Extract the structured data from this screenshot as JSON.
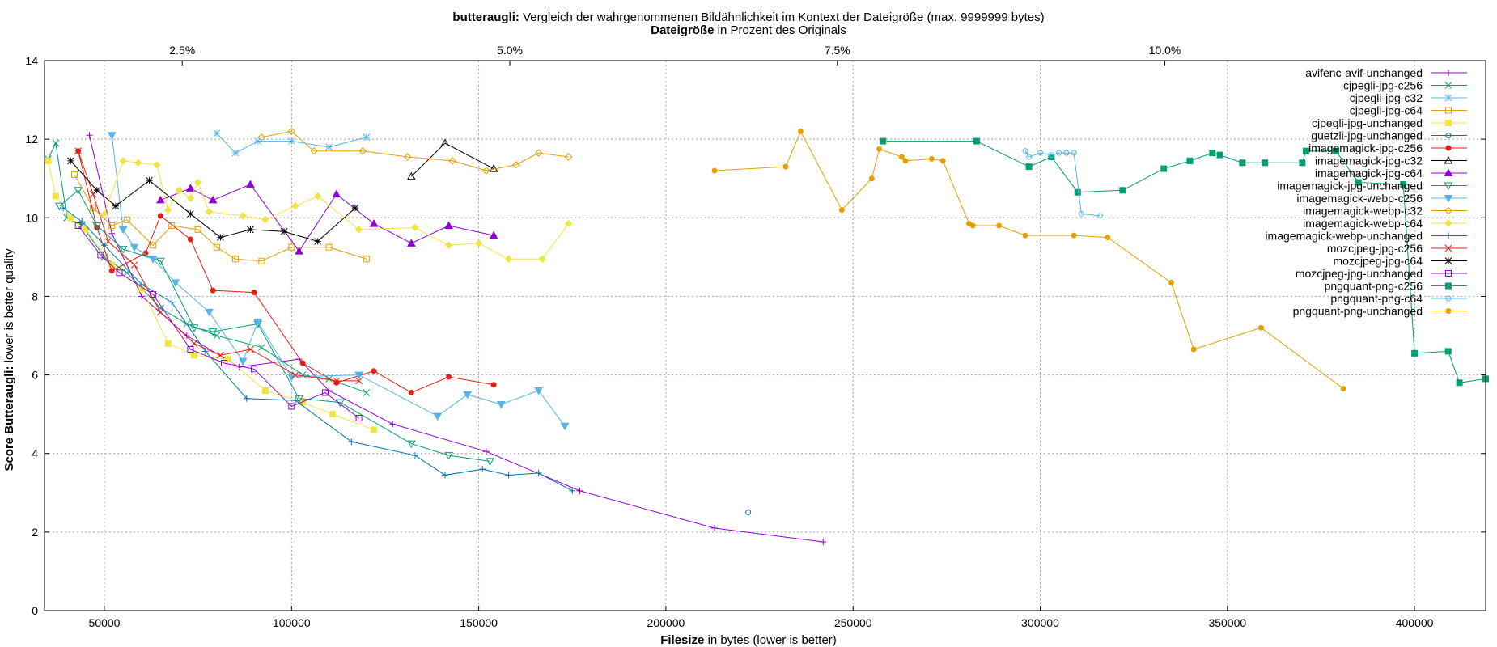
{
  "chart_data": {
    "type": "line",
    "title_bold": "butteraugli:",
    "title_rest": " Vergleich der wahrgenommenen Bildähnlichkeit im Kontext der Dateigröße (max. 9999999 bytes)",
    "x2label_bold": "Dateigröße",
    "x2label_rest": " in Prozent des Originals",
    "xlabel_bold": "Filesize",
    "xlabel_rest": " in bytes (lower is better)",
    "ylabel_bold": "Score Butteraugli:",
    "ylabel_rest": " lower is better quality",
    "xlim": [
      34000,
      419000
    ],
    "ylim": [
      0,
      14
    ],
    "x_ticks": [
      50000,
      100000,
      150000,
      200000,
      250000,
      300000,
      350000,
      400000
    ],
    "x_tick_labels": [
      "50000",
      "100000",
      "150000",
      "200000",
      "250000",
      "300000",
      "350000",
      "400000"
    ],
    "y_ticks": [
      0,
      2,
      4,
      6,
      8,
      10,
      12,
      14
    ],
    "y_tick_labels": [
      "0",
      "2",
      "4",
      "6",
      "8",
      "10",
      "12",
      "14"
    ],
    "x2_ticks": [
      70800,
      158300,
      245800,
      333300
    ],
    "x2_tick_labels": [
      "2.5%",
      "5.0%",
      "7.5%",
      "10.0%"
    ],
    "grid": true,
    "legend_position": "top-right",
    "series": [
      {
        "name": "avifenc-avif-unchanged",
        "color": "#9400d3",
        "marker": "plus",
        "points": [
          [
            46000,
            12.1
          ],
          [
            52000,
            9.6
          ],
          [
            60000,
            8.0
          ],
          [
            72000,
            7.0
          ],
          [
            86000,
            6.2
          ],
          [
            102000,
            6.4
          ],
          [
            110000,
            5.6
          ],
          [
            127000,
            4.75
          ],
          [
            152000,
            4.05
          ],
          [
            177000,
            3.05
          ],
          [
            213000,
            2.1
          ],
          [
            242000,
            1.75
          ]
        ]
      },
      {
        "name": "cjpegli-jpg-c256",
        "color": "#009e73",
        "marker": "x",
        "points": [
          [
            35000,
            11.5
          ],
          [
            37000,
            11.9
          ],
          [
            40000,
            10.0
          ],
          [
            44000,
            9.8
          ],
          [
            50000,
            9.0
          ],
          [
            56000,
            8.6
          ],
          [
            65000,
            7.7
          ],
          [
            72000,
            7.3
          ],
          [
            80000,
            7.0
          ],
          [
            92000,
            6.7
          ],
          [
            103000,
            6.0
          ],
          [
            110000,
            5.9
          ],
          [
            120000,
            5.55
          ]
        ]
      },
      {
        "name": "cjpegli-jpg-c32",
        "color": "#56b4e9",
        "marker": "star",
        "points": [
          [
            80000,
            12.15
          ],
          [
            85000,
            11.65
          ],
          [
            91000,
            11.95
          ],
          [
            100000,
            11.95
          ],
          [
            110000,
            11.8
          ],
          [
            120000,
            12.05
          ]
        ]
      },
      {
        "name": "cjpegli-jpg-c64",
        "color": "#e69f00",
        "marker": "square",
        "points": [
          [
            42000,
            11.1
          ],
          [
            47000,
            10.25
          ],
          [
            52000,
            9.8
          ],
          [
            56000,
            9.95
          ],
          [
            63000,
            9.3
          ],
          [
            68000,
            9.8
          ],
          [
            75000,
            9.7
          ],
          [
            80000,
            9.25
          ],
          [
            85000,
            8.95
          ],
          [
            92000,
            8.9
          ],
          [
            100000,
            9.25
          ],
          [
            110000,
            9.25
          ],
          [
            120000,
            8.95
          ]
        ]
      },
      {
        "name": "cjpegli-jpg-unchanged",
        "color": "#f0e442",
        "marker": "filled-square",
        "points": [
          [
            35000,
            11.45
          ],
          [
            37000,
            10.55
          ],
          [
            41000,
            10.0
          ],
          [
            45000,
            9.7
          ],
          [
            52000,
            8.8
          ],
          [
            60000,
            8.2
          ],
          [
            67000,
            6.8
          ],
          [
            74000,
            6.5
          ],
          [
            83000,
            6.4
          ],
          [
            93000,
            5.6
          ],
          [
            103000,
            5.3
          ],
          [
            111000,
            5.0
          ],
          [
            122000,
            4.6
          ]
        ]
      },
      {
        "name": "guetzli-jpg-unchanged",
        "color": "#0072b2",
        "marker": "circle",
        "points": [
          [
            222000,
            2.5
          ]
        ]
      },
      {
        "name": "imagemagick-jpg-c256",
        "color": "#e51e10",
        "marker": "filled-circle",
        "points": [
          [
            43000,
            11.7
          ],
          [
            48000,
            9.75
          ],
          [
            52000,
            8.65
          ],
          [
            61000,
            9.1
          ],
          [
            65000,
            10.05
          ],
          [
            73000,
            9.45
          ],
          [
            79000,
            8.15
          ],
          [
            90000,
            8.1
          ],
          [
            103000,
            6.3
          ],
          [
            112000,
            5.8
          ],
          [
            122000,
            6.1
          ],
          [
            132000,
            5.55
          ],
          [
            142000,
            5.95
          ],
          [
            154000,
            5.75
          ]
        ]
      },
      {
        "name": "imagemagick-jpg-c32",
        "color": "#000000",
        "marker": "triangle",
        "points": [
          [
            132000,
            11.05
          ],
          [
            141000,
            11.9
          ],
          [
            154000,
            11.25
          ]
        ]
      },
      {
        "name": "imagemagick-jpg-c64",
        "color": "#9400d3",
        "marker": "filled-triangle",
        "points": [
          [
            65000,
            10.45
          ],
          [
            73000,
            10.75
          ],
          [
            79000,
            10.45
          ],
          [
            89000,
            10.85
          ],
          [
            102000,
            9.15
          ],
          [
            112000,
            10.6
          ],
          [
            122000,
            9.85
          ],
          [
            132000,
            9.35
          ],
          [
            142000,
            9.8
          ],
          [
            154000,
            9.55
          ]
        ]
      },
      {
        "name": "imagemagick-jpg-unchanged",
        "color": "#009e73",
        "marker": "down-triangle",
        "points": [
          [
            38000,
            10.3
          ],
          [
            43000,
            10.7
          ],
          [
            48000,
            9.8
          ],
          [
            55000,
            9.2
          ],
          [
            65000,
            8.9
          ],
          [
            74000,
            7.2
          ],
          [
            79000,
            7.1
          ],
          [
            91000,
            7.3
          ],
          [
            102000,
            5.4
          ],
          [
            113000,
            5.3
          ],
          [
            132000,
            4.25
          ],
          [
            142000,
            3.95
          ],
          [
            153000,
            3.8
          ]
        ]
      },
      {
        "name": "imagemagick-webp-c256",
        "color": "#56b4e9",
        "marker": "filled-down-triangle",
        "points": [
          [
            52000,
            12.1
          ],
          [
            55000,
            9.7
          ],
          [
            58000,
            9.25
          ],
          [
            63000,
            8.95
          ],
          [
            69000,
            8.35
          ],
          [
            78000,
            7.6
          ],
          [
            87000,
            6.35
          ],
          [
            91000,
            7.35
          ],
          [
            100000,
            5.95
          ],
          [
            118000,
            6.0
          ],
          [
            139000,
            4.95
          ],
          [
            147000,
            5.5
          ],
          [
            156000,
            5.25
          ],
          [
            166000,
            5.6
          ],
          [
            173000,
            4.7
          ]
        ]
      },
      {
        "name": "imagemagick-webp-c32",
        "color": "#e69f00",
        "marker": "diamond",
        "points": [
          [
            92000,
            12.05
          ],
          [
            100000,
            12.2
          ],
          [
            106000,
            11.7
          ],
          [
            119000,
            11.7
          ],
          [
            131000,
            11.55
          ],
          [
            143000,
            11.45
          ],
          [
            152000,
            11.2
          ],
          [
            160000,
            11.35
          ],
          [
            166000,
            11.65
          ],
          [
            174000,
            11.55
          ]
        ]
      },
      {
        "name": "imagemagick-webp-c64",
        "color": "#f0e442",
        "marker": "filled-diamond",
        "points": [
          [
            50000,
            10.1
          ],
          [
            55000,
            11.45
          ],
          [
            59000,
            11.4
          ],
          [
            64000,
            11.35
          ],
          [
            67000,
            10.2
          ],
          [
            70000,
            10.7
          ],
          [
            73000,
            10.5
          ],
          [
            75000,
            10.9
          ],
          [
            78000,
            10.15
          ],
          [
            87000,
            10.05
          ],
          [
            93000,
            9.95
          ],
          [
            101000,
            10.3
          ],
          [
            107000,
            10.55
          ],
          [
            118000,
            9.7
          ],
          [
            133000,
            9.75
          ],
          [
            142000,
            9.3
          ],
          [
            150000,
            9.35
          ],
          [
            158000,
            8.95
          ],
          [
            167000,
            8.95
          ],
          [
            174000,
            9.85
          ]
        ]
      },
      {
        "name": "imagemagick-webp-unchanged",
        "color": "#0072b2",
        "marker": "plus",
        "points": [
          [
            39000,
            10.25
          ],
          [
            44000,
            9.9
          ],
          [
            50000,
            9.3
          ],
          [
            60000,
            8.3
          ],
          [
            68000,
            7.85
          ],
          [
            77000,
            6.6
          ],
          [
            88000,
            5.4
          ],
          [
            101000,
            5.35
          ],
          [
            116000,
            4.3
          ],
          [
            133000,
            3.95
          ],
          [
            141000,
            3.45
          ],
          [
            151000,
            3.6
          ],
          [
            158000,
            3.45
          ],
          [
            166000,
            3.5
          ],
          [
            175000,
            3.05
          ]
        ]
      },
      {
        "name": "mozcjpeg-jpg-c256",
        "color": "#e51e10",
        "marker": "x",
        "points": [
          [
            43000,
            11.7
          ],
          [
            47000,
            10.6
          ],
          [
            51000,
            9.4
          ],
          [
            58000,
            8.8
          ],
          [
            65000,
            7.6
          ],
          [
            74000,
            6.8
          ],
          [
            81000,
            6.5
          ],
          [
            89000,
            6.65
          ],
          [
            101000,
            6.0
          ],
          [
            112000,
            5.85
          ],
          [
            118000,
            5.85
          ]
        ]
      },
      {
        "name": "mozcjpeg-jpg-c64",
        "color": "#000000",
        "marker": "star",
        "points": [
          [
            41000,
            11.45
          ],
          [
            48000,
            10.7
          ],
          [
            53000,
            10.3
          ],
          [
            62000,
            10.95
          ],
          [
            73000,
            10.1
          ],
          [
            81000,
            9.5
          ],
          [
            89000,
            9.7
          ],
          [
            98000,
            9.65
          ],
          [
            107000,
            9.4
          ],
          [
            117000,
            10.25
          ]
        ]
      },
      {
        "name": "mozcjpeg-jpg-unchanged",
        "color": "#9400d3",
        "marker": "square",
        "points": [
          [
            43000,
            9.8
          ],
          [
            49000,
            9.05
          ],
          [
            54000,
            8.6
          ],
          [
            63000,
            8.05
          ],
          [
            73000,
            6.65
          ],
          [
            82000,
            6.3
          ],
          [
            90000,
            6.15
          ],
          [
            100000,
            5.2
          ],
          [
            109000,
            5.55
          ],
          [
            118000,
            4.9
          ]
        ]
      },
      {
        "name": "pngquant-png-c256",
        "color": "#009e73",
        "marker": "filled-square",
        "points": [
          [
            258000,
            11.95
          ],
          [
            283000,
            11.95
          ],
          [
            297000,
            11.3
          ],
          [
            303000,
            11.55
          ],
          [
            310000,
            10.65
          ],
          [
            322000,
            10.7
          ],
          [
            333000,
            11.25
          ],
          [
            340000,
            11.45
          ],
          [
            346000,
            11.65
          ],
          [
            348000,
            11.6
          ],
          [
            354000,
            11.4
          ],
          [
            360000,
            11.4
          ],
          [
            370000,
            11.4
          ],
          [
            371000,
            11.7
          ],
          [
            379000,
            11.7
          ],
          [
            385000,
            10.9
          ],
          [
            397000,
            10.85
          ],
          [
            400000,
            6.55
          ],
          [
            409000,
            6.6
          ],
          [
            412000,
            5.8
          ],
          [
            419000,
            5.9
          ]
        ]
      },
      {
        "name": "pngquant-png-c64",
        "color": "#56b4e9",
        "marker": "circle",
        "points": [
          [
            296000,
            11.7
          ],
          [
            297000,
            11.55
          ],
          [
            300000,
            11.65
          ],
          [
            303000,
            11.6
          ],
          [
            305000,
            11.65
          ],
          [
            307000,
            11.65
          ],
          [
            309000,
            11.65
          ],
          [
            311000,
            10.1
          ],
          [
            316000,
            10.05
          ]
        ]
      },
      {
        "name": "pngquant-png-unchanged",
        "color": "#e69f00",
        "marker": "filled-circle",
        "points": [
          [
            213000,
            11.2
          ],
          [
            232000,
            11.3
          ],
          [
            236000,
            12.2
          ],
          [
            247000,
            10.2
          ],
          [
            255000,
            11.0
          ],
          [
            257000,
            11.75
          ],
          [
            263000,
            11.55
          ],
          [
            264000,
            11.45
          ],
          [
            271000,
            11.5
          ],
          [
            274000,
            11.45
          ],
          [
            281000,
            9.85
          ],
          [
            282000,
            9.8
          ],
          [
            289000,
            9.8
          ],
          [
            296000,
            9.55
          ],
          [
            309000,
            9.55
          ],
          [
            318000,
            9.5
          ],
          [
            335000,
            8.35
          ],
          [
            341000,
            6.65
          ],
          [
            359000,
            7.2
          ],
          [
            381000,
            5.65
          ]
        ]
      }
    ]
  }
}
